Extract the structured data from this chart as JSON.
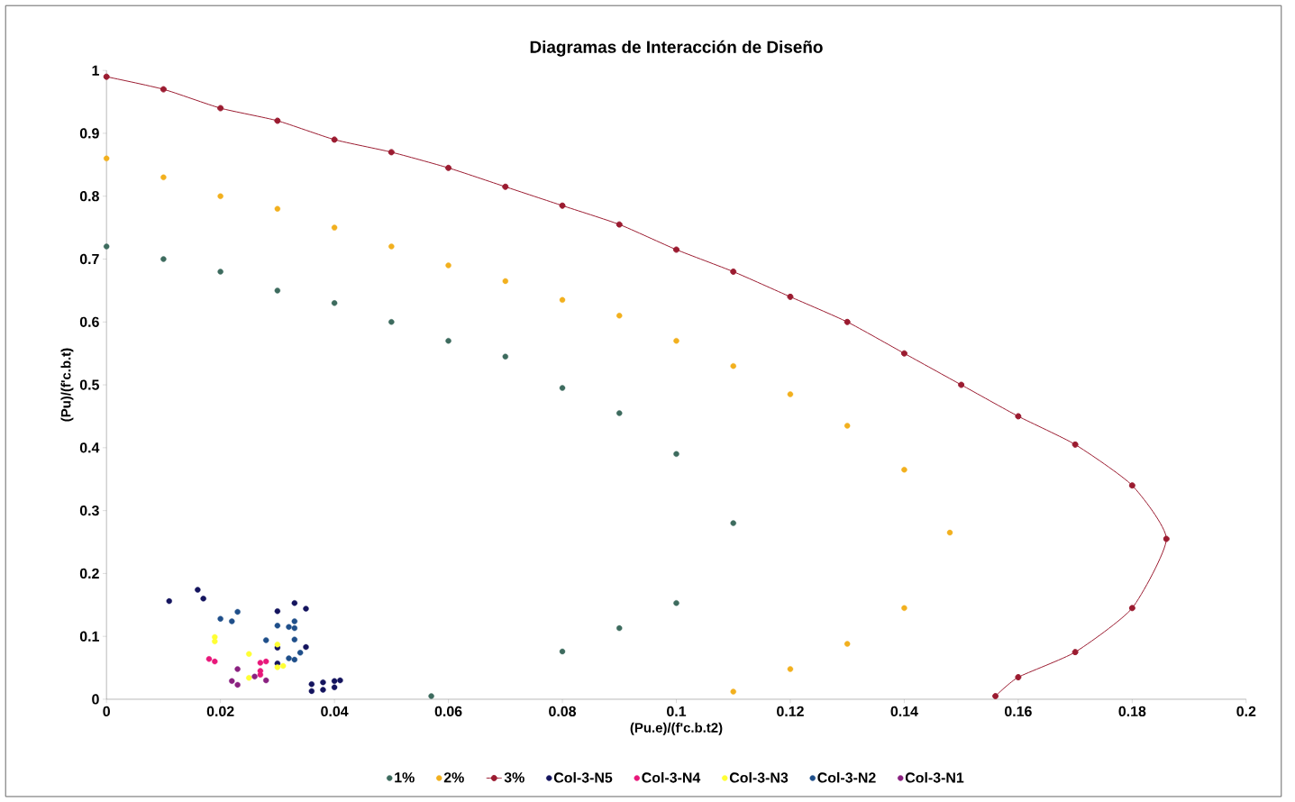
{
  "chart_data": {
    "type": "scatter",
    "title": "Diagramas de Interacción de Diseño",
    "xlabel": "(Pu.e)/(f'c.b.t2)",
    "ylabel": "(Pu)/(f'c.b.t)",
    "xlim": [
      0,
      0.2
    ],
    "ylim": [
      0,
      1
    ],
    "xticks": [
      0,
      0.02,
      0.04,
      0.06,
      0.08,
      0.1,
      0.12,
      0.14,
      0.16,
      0.18,
      0.2
    ],
    "yticks": [
      0,
      0.1,
      0.2,
      0.3,
      0.4,
      0.5,
      0.6,
      0.7,
      0.8,
      0.9,
      1
    ],
    "grid": false,
    "legend": "bottom",
    "marker": "circle",
    "series": [
      {
        "name": "1%",
        "color": "#3d6b5e",
        "x": [
          0,
          0.01,
          0.02,
          0.03,
          0.04,
          0.05,
          0.06,
          0.07,
          0.08,
          0.09,
          0.1,
          0.11,
          0.1,
          0.09,
          0.08,
          0.057
        ],
        "values": [
          0.72,
          0.7,
          0.68,
          0.65,
          0.63,
          0.6,
          0.57,
          0.545,
          0.495,
          0.455,
          0.39,
          0.28,
          0.153,
          0.113,
          0.076,
          0.005
        ]
      },
      {
        "name": "2%",
        "color": "#f2b01e",
        "x": [
          0,
          0.01,
          0.02,
          0.03,
          0.04,
          0.05,
          0.06,
          0.07,
          0.08,
          0.09,
          0.1,
          0.11,
          0.12,
          0.13,
          0.14,
          0.148,
          0.14,
          0.13,
          0.12,
          0.11
        ],
        "values": [
          0.86,
          0.83,
          0.8,
          0.78,
          0.75,
          0.72,
          0.69,
          0.665,
          0.635,
          0.61,
          0.57,
          0.53,
          0.485,
          0.435,
          0.365,
          0.265,
          0.145,
          0.088,
          0.048,
          0.012
        ]
      },
      {
        "name": "3%",
        "type": "line",
        "color": "#9b1b30",
        "x": [
          0,
          0.01,
          0.02,
          0.03,
          0.04,
          0.05,
          0.06,
          0.07,
          0.08,
          0.09,
          0.1,
          0.11,
          0.12,
          0.13,
          0.14,
          0.15,
          0.16,
          0.17,
          0.18,
          0.186,
          0.18,
          0.17,
          0.16,
          0.156
        ],
        "values": [
          0.99,
          0.97,
          0.94,
          0.92,
          0.89,
          0.87,
          0.845,
          0.815,
          0.785,
          0.755,
          0.715,
          0.68,
          0.64,
          0.6,
          0.55,
          0.5,
          0.45,
          0.405,
          0.34,
          0.255,
          0.145,
          0.075,
          0.035,
          0.005
        ]
      },
      {
        "name": "Col-3-N5",
        "color": "#14145e",
        "x": [
          0.011,
          0.016,
          0.017,
          0.03,
          0.03,
          0.03,
          0.036,
          0.036,
          0.038,
          0.038,
          0.04,
          0.04,
          0.041,
          0.033,
          0.035,
          0.035
        ],
        "values": [
          0.156,
          0.174,
          0.16,
          0.14,
          0.082,
          0.057,
          0.024,
          0.013,
          0.027,
          0.015,
          0.029,
          0.019,
          0.03,
          0.153,
          0.144,
          0.083
        ]
      },
      {
        "name": "Col-3-N4",
        "color": "#e8177a",
        "x": [
          0.018,
          0.019,
          0.027,
          0.028,
          0.027,
          0.027
        ],
        "values": [
          0.064,
          0.06,
          0.058,
          0.06,
          0.039,
          0.045
        ]
      },
      {
        "name": "Col-3-N3",
        "color": "#ffff33",
        "x": [
          0.019,
          0.019,
          0.025,
          0.03,
          0.03,
          0.031,
          0.025
        ],
        "values": [
          0.099,
          0.092,
          0.072,
          0.087,
          0.051,
          0.053,
          0.034
        ]
      },
      {
        "name": "Col-3-N2",
        "color": "#1f4f8a",
        "x": [
          0.02,
          0.022,
          0.023,
          0.028,
          0.03,
          0.032,
          0.033,
          0.033,
          0.033,
          0.034,
          0.032,
          0.033
        ],
        "values": [
          0.128,
          0.124,
          0.139,
          0.094,
          0.117,
          0.115,
          0.124,
          0.113,
          0.095,
          0.074,
          0.065,
          0.063
        ]
      },
      {
        "name": "Col-3-N1",
        "color": "#8a2080",
        "x": [
          0.023,
          0.022,
          0.023,
          0.026,
          0.028
        ],
        "values": [
          0.048,
          0.029,
          0.023,
          0.036,
          0.03
        ]
      }
    ]
  }
}
